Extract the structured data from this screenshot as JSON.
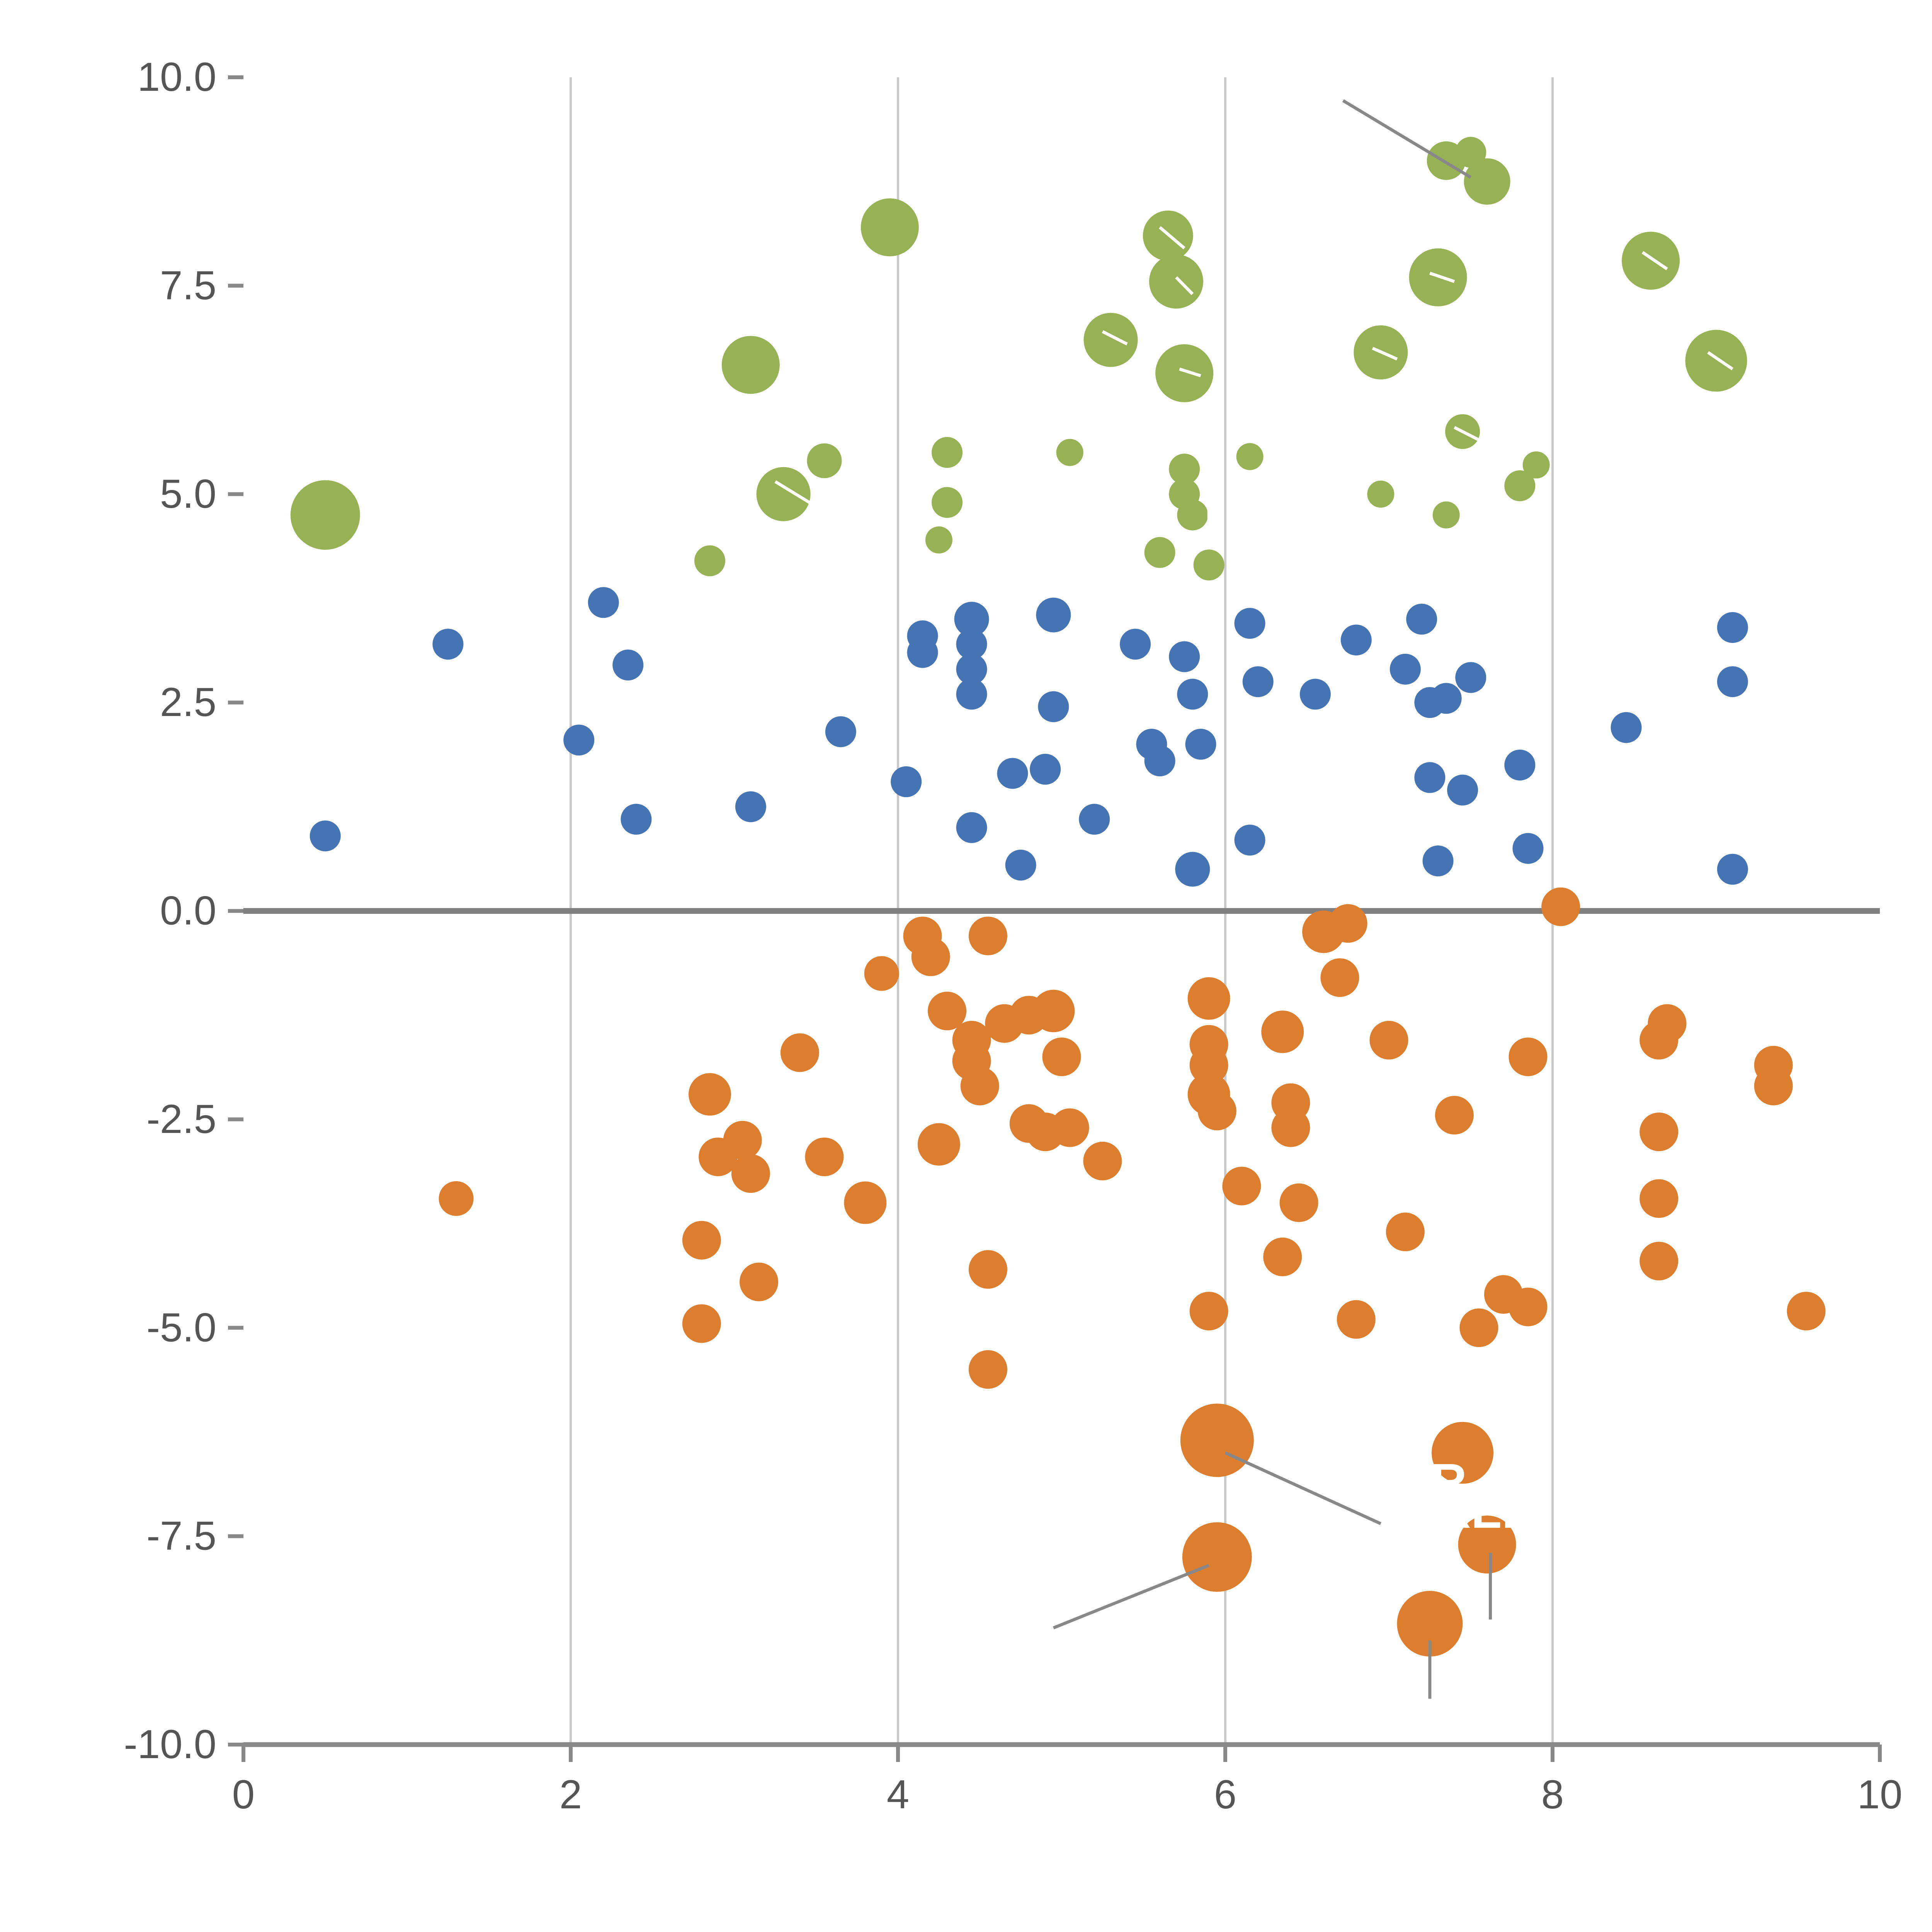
{
  "page": {
    "background": "#ffffff",
    "title": ""
  },
  "chart_data": {
    "type": "scatter",
    "title": "",
    "xlabel": "",
    "ylabel": "",
    "xlim": [
      0,
      10
    ],
    "ylim": [
      -10,
      10
    ],
    "x_ticks": [
      0,
      2,
      4,
      6,
      8,
      10
    ],
    "x_tick_labels": [
      "0",
      "2",
      "4",
      "6",
      "8",
      "10"
    ],
    "y_ticks": [
      -10,
      -7.5,
      -5,
      -2.5,
      0,
      2.5,
      5,
      7.5,
      10
    ],
    "y_tick_labels": [
      "-10.0",
      "-7.5",
      "-5.0",
      "-2.5",
      "0.0",
      "2.5",
      "5.0",
      "7.5",
      "10.0"
    ],
    "grid_on": true,
    "gridlines_x": [
      2,
      4,
      6,
      8
    ],
    "zero_line_y": 0,
    "grid_color": "#c9c9c9",
    "zero_line_color": "#808080",
    "axis_color": "#888888",
    "tick_label_color": "#555555",
    "legend": "none",
    "series": [
      {
        "name": "green-cluster",
        "color": "#97b254",
        "points": [
          [
            0.5,
            4.75,
            18
          ],
          [
            2.85,
            4.2,
            8
          ],
          [
            3.1,
            6.55,
            15
          ],
          [
            3.3,
            5.0,
            14
          ],
          [
            3.55,
            5.4,
            9
          ],
          [
            3.95,
            8.2,
            15
          ],
          [
            4.3,
            5.5,
            8
          ],
          [
            4.3,
            4.9,
            8
          ],
          [
            4.25,
            4.45,
            7
          ],
          [
            5.05,
            5.5,
            7
          ],
          [
            5.3,
            6.85,
            14
          ],
          [
            5.65,
            8.1,
            13
          ],
          [
            5.7,
            7.55,
            14
          ],
          [
            5.75,
            6.45,
            15
          ],
          [
            5.75,
            5.3,
            8
          ],
          [
            5.75,
            5.0,
            8
          ],
          [
            5.8,
            4.75,
            8
          ],
          [
            5.6,
            4.3,
            8
          ],
          [
            5.9,
            4.15,
            8
          ],
          [
            6.15,
            5.45,
            7
          ],
          [
            6.95,
            6.7,
            14
          ],
          [
            7.3,
            7.6,
            15
          ],
          [
            7.35,
            9.0,
            10
          ],
          [
            7.6,
            8.75,
            12
          ],
          [
            7.5,
            9.1,
            8
          ],
          [
            7.45,
            5.75,
            9
          ],
          [
            6.95,
            5.0,
            7
          ],
          [
            7.35,
            4.75,
            7
          ],
          [
            7.8,
            5.1,
            8
          ],
          [
            7.9,
            5.35,
            7
          ],
          [
            8.6,
            7.8,
            15
          ],
          [
            9.0,
            6.6,
            16
          ]
        ]
      },
      {
        "name": "blue-cluster",
        "color": "#4574b4",
        "points": [
          [
            0.5,
            0.9,
            8
          ],
          [
            1.25,
            3.2,
            8
          ],
          [
            2.05,
            2.05,
            8
          ],
          [
            2.2,
            3.7,
            8
          ],
          [
            2.35,
            2.95,
            8
          ],
          [
            2.4,
            1.1,
            8
          ],
          [
            3.1,
            1.25,
            8
          ],
          [
            3.65,
            2.15,
            8
          ],
          [
            4.05,
            1.55,
            8
          ],
          [
            4.15,
            3.3,
            8
          ],
          [
            4.15,
            3.1,
            8
          ],
          [
            4.45,
            3.5,
            9
          ],
          [
            4.45,
            3.2,
            8
          ],
          [
            4.45,
            2.9,
            8
          ],
          [
            4.45,
            2.6,
            8
          ],
          [
            4.45,
            1.0,
            8
          ],
          [
            4.7,
            1.65,
            8
          ],
          [
            4.75,
            0.55,
            8
          ],
          [
            4.9,
            1.7,
            8
          ],
          [
            4.95,
            2.45,
            8
          ],
          [
            4.95,
            3.55,
            9
          ],
          [
            5.2,
            1.1,
            8
          ],
          [
            5.45,
            3.2,
            8
          ],
          [
            5.55,
            2.0,
            8
          ],
          [
            5.6,
            1.8,
            8
          ],
          [
            5.75,
            3.05,
            8
          ],
          [
            5.8,
            2.6,
            8
          ],
          [
            5.8,
            0.5,
            9
          ],
          [
            5.85,
            2.0,
            8
          ],
          [
            6.15,
            3.45,
            8
          ],
          [
            6.2,
            2.75,
            8
          ],
          [
            6.15,
            0.85,
            8
          ],
          [
            6.55,
            2.6,
            8
          ],
          [
            6.8,
            3.25,
            8
          ],
          [
            7.1,
            2.9,
            8
          ],
          [
            7.2,
            3.5,
            8
          ],
          [
            7.25,
            2.5,
            8
          ],
          [
            7.25,
            1.6,
            8
          ],
          [
            7.3,
            0.6,
            8
          ],
          [
            7.35,
            2.55,
            8
          ],
          [
            7.45,
            1.45,
            8
          ],
          [
            7.5,
            2.8,
            8
          ],
          [
            7.8,
            1.75,
            8
          ],
          [
            7.85,
            0.75,
            8
          ],
          [
            8.45,
            2.2,
            8
          ],
          [
            9.1,
            3.4,
            8
          ],
          [
            9.1,
            2.75,
            8
          ],
          [
            9.1,
            0.5,
            8
          ]
        ]
      },
      {
        "name": "orange-cluster",
        "color": "#dd7e2e",
        "points": [
          [
            1.3,
            -3.45,
            9
          ],
          [
            2.8,
            -4.95,
            10
          ],
          [
            2.8,
            -3.95,
            10
          ],
          [
            2.85,
            -2.2,
            11
          ],
          [
            2.9,
            -2.95,
            10
          ],
          [
            3.05,
            -2.75,
            10
          ],
          [
            3.1,
            -3.15,
            10
          ],
          [
            3.15,
            -4.45,
            10
          ],
          [
            3.4,
            -1.7,
            10
          ],
          [
            3.55,
            -2.95,
            10
          ],
          [
            3.8,
            -3.5,
            11
          ],
          [
            3.9,
            -0.75,
            9
          ],
          [
            4.15,
            -0.3,
            10
          ],
          [
            4.2,
            -0.55,
            10
          ],
          [
            4.25,
            -2.8,
            11
          ],
          [
            4.3,
            -1.2,
            10
          ],
          [
            4.45,
            -1.55,
            10
          ],
          [
            4.45,
            -1.8,
            10
          ],
          [
            4.5,
            -2.1,
            10
          ],
          [
            4.55,
            -0.3,
            10
          ],
          [
            4.55,
            -4.3,
            10
          ],
          [
            4.55,
            -5.5,
            10
          ],
          [
            4.65,
            -1.35,
            10
          ],
          [
            4.8,
            -1.25,
            10
          ],
          [
            4.8,
            -2.55,
            10
          ],
          [
            4.9,
            -2.65,
            10
          ],
          [
            4.95,
            -1.2,
            11
          ],
          [
            5.0,
            -1.75,
            10
          ],
          [
            5.05,
            -2.6,
            10
          ],
          [
            5.25,
            -3.0,
            10
          ],
          [
            5.9,
            -1.05,
            11
          ],
          [
            5.9,
            -1.6,
            10
          ],
          [
            5.9,
            -1.85,
            10
          ],
          [
            5.9,
            -2.2,
            11
          ],
          [
            5.95,
            -2.4,
            10
          ],
          [
            5.9,
            -4.8,
            10
          ],
          [
            6.1,
            -3.3,
            10
          ],
          [
            6.35,
            -1.45,
            11
          ],
          [
            6.4,
            -2.3,
            10
          ],
          [
            6.4,
            -2.6,
            10
          ],
          [
            6.45,
            -3.5,
            10
          ],
          [
            6.35,
            -4.15,
            10
          ],
          [
            6.6,
            -0.25,
            11
          ],
          [
            6.7,
            -0.8,
            10
          ],
          [
            6.75,
            -0.15,
            10
          ],
          [
            6.8,
            -4.9,
            10
          ],
          [
            7.0,
            -1.55,
            10
          ],
          [
            7.1,
            -3.85,
            10
          ],
          [
            7.4,
            -2.45,
            10
          ],
          [
            7.55,
            -5.0,
            10
          ],
          [
            7.7,
            -4.6,
            10
          ],
          [
            7.85,
            -4.75,
            10
          ],
          [
            7.85,
            -1.75,
            10
          ],
          [
            8.05,
            0.05,
            10
          ],
          [
            8.65,
            -1.55,
            10
          ],
          [
            8.7,
            -1.35,
            10
          ],
          [
            8.65,
            -2.65,
            10
          ],
          [
            8.65,
            -3.45,
            10
          ],
          [
            8.65,
            -4.2,
            10
          ],
          [
            9.35,
            -1.85,
            10
          ],
          [
            9.35,
            -2.1,
            10
          ],
          [
            9.55,
            -4.8,
            10
          ],
          [
            5.95,
            -6.35,
            19
          ],
          [
            5.95,
            -7.75,
            18
          ],
          [
            7.25,
            -8.55,
            17
          ],
          [
            7.45,
            -6.5,
            16
          ],
          [
            7.6,
            -7.6,
            15
          ]
        ]
      }
    ],
    "annotations": {
      "leader_line_color": "#888888",
      "leader_lines": [
        {
          "x1": 6.72,
          "y1": 9.72,
          "x2": 7.5,
          "y2": 8.8
        },
        {
          "x1": 6.0,
          "y1": -6.5,
          "x2": 6.95,
          "y2": -7.35
        },
        {
          "x1": 5.9,
          "y1": -7.85,
          "x2": 4.95,
          "y2": -8.6
        },
        {
          "x1": 7.25,
          "y1": -8.75,
          "x2": 7.25,
          "y2": -9.45
        },
        {
          "x1": 7.62,
          "y1": -7.7,
          "x2": 7.62,
          "y2": -8.5
        }
      ],
      "white_line_color": "#ffffff",
      "white_lines": [
        {
          "x1": 3.25,
          "y1": 5.15,
          "x2": 3.5,
          "y2": 4.85
        },
        {
          "x1": 5.6,
          "y1": 8.2,
          "x2": 5.75,
          "y2": 7.95
        },
        {
          "x1": 5.7,
          "y1": 7.6,
          "x2": 5.8,
          "y2": 7.4
        },
        {
          "x1": 5.72,
          "y1": 6.5,
          "x2": 5.85,
          "y2": 6.42
        },
        {
          "x1": 6.9,
          "y1": 6.75,
          "x2": 7.05,
          "y2": 6.62
        },
        {
          "x1": 7.25,
          "y1": 7.65,
          "x2": 7.4,
          "y2": 7.55
        },
        {
          "x1": 8.55,
          "y1": 7.9,
          "x2": 8.7,
          "y2": 7.7
        },
        {
          "x1": 8.95,
          "y1": 6.7,
          "x2": 9.1,
          "y2": 6.5
        },
        {
          "x1": 7.4,
          "y1": 5.8,
          "x2": 7.55,
          "y2": 5.65
        },
        {
          "x1": 5.25,
          "y1": 6.95,
          "x2": 5.4,
          "y2": 6.8
        },
        {
          "x1": 5.9,
          "y1": 5.35,
          "x2": 5.9,
          "y2": 4.55
        }
      ],
      "labels": [
        {
          "text": "XR",
          "x": 7.05,
          "y": -7.05,
          "color": "#ffffff",
          "size": 26
        },
        {
          "text": "RLD",
          "x": 7.28,
          "y": -7.4,
          "color": "#ffffff",
          "size": 26
        }
      ]
    }
  }
}
